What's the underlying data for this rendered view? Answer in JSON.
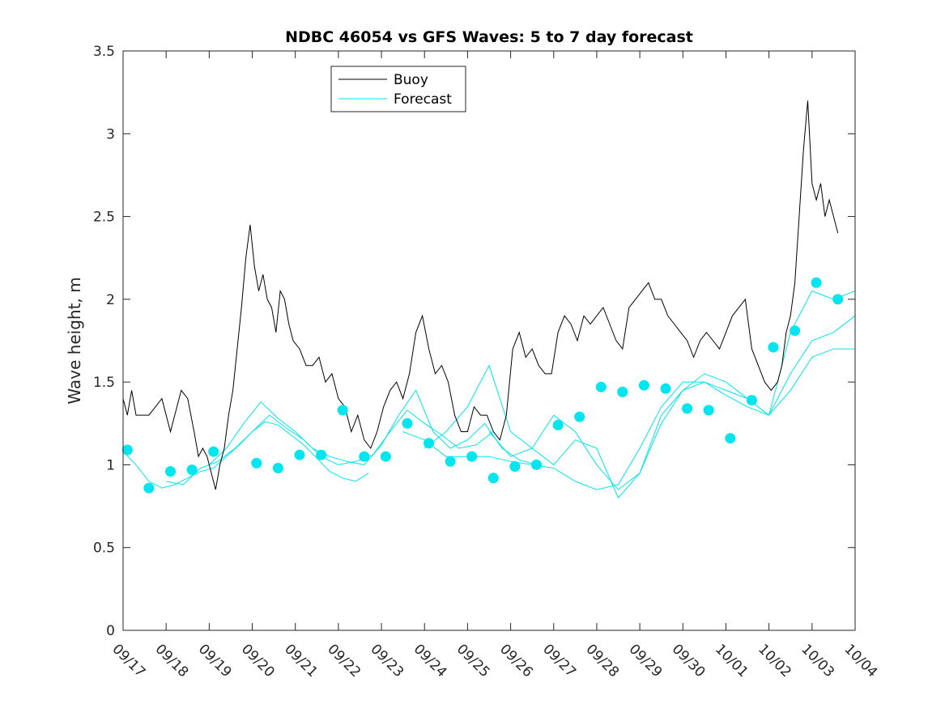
{
  "chart_data": {
    "type": "line",
    "title": "NDBC 46054 vs GFS Waves: 5 to 7 day forecast",
    "xlabel": "",
    "ylabel": "Wave height, m",
    "xlim": [
      0,
      17
    ],
    "ylim": [
      0,
      3.5
    ],
    "yticks": [
      0,
      0.5,
      1,
      1.5,
      2,
      2.5,
      3,
      3.5
    ],
    "ytick_labels": [
      "0",
      "0.5",
      "1",
      "1.5",
      "2",
      "2.5",
      "3",
      "3.5"
    ],
    "xtick_labels": [
      "09/17",
      "09/18",
      "09/19",
      "09/20",
      "09/21",
      "09/22",
      "09/23",
      "09/24",
      "09/25",
      "09/26",
      "09/27",
      "09/28",
      "09/29",
      "09/30",
      "10/01",
      "10/02",
      "10/03",
      "10/04"
    ],
    "legend": {
      "location": "top-center",
      "entries": [
        "Buoy",
        "Forecast"
      ]
    },
    "colors": {
      "buoy": "#000000",
      "forecast": "#00e5ee",
      "axis": "#262626"
    },
    "buoy": {
      "name": "Buoy",
      "x": [
        0,
        0.1,
        0.2,
        0.3,
        0.45,
        0.6,
        0.75,
        0.9,
        1.0,
        1.1,
        1.2,
        1.35,
        1.5,
        1.65,
        1.75,
        1.85,
        1.95,
        2.05,
        2.15,
        2.25,
        2.35,
        2.45,
        2.55,
        2.65,
        2.75,
        2.85,
        2.95,
        3.05,
        3.15,
        3.25,
        3.35,
        3.45,
        3.55,
        3.65,
        3.75,
        3.85,
        3.95,
        4.1,
        4.25,
        4.4,
        4.55,
        4.7,
        4.85,
        5.0,
        5.15,
        5.3,
        5.45,
        5.6,
        5.75,
        5.9,
        6.05,
        6.2,
        6.35,
        6.5,
        6.65,
        6.8,
        6.95,
        7.1,
        7.25,
        7.4,
        7.55,
        7.7,
        7.85,
        8.0,
        8.15,
        8.3,
        8.45,
        8.6,
        8.75,
        8.9,
        9.05,
        9.2,
        9.35,
        9.5,
        9.65,
        9.8,
        9.95,
        10.1,
        10.25,
        10.4,
        10.55,
        10.7,
        10.85,
        11.0,
        11.15,
        11.3,
        11.45,
        11.6,
        11.75,
        11.9,
        12.05,
        12.2,
        12.35,
        12.5,
        12.65,
        12.8,
        12.95,
        13.1,
        13.25,
        13.4,
        13.55,
        13.7,
        13.85,
        14.0,
        14.15,
        14.3,
        14.45,
        14.6,
        14.75,
        14.9,
        15.05,
        15.2,
        15.3,
        15.4,
        15.5,
        15.6,
        15.7,
        15.8,
        15.9,
        16.0,
        16.1,
        16.2,
        16.3,
        16.4,
        16.5,
        16.6
      ],
      "y": [
        1.4,
        1.3,
        1.45,
        1.3,
        1.3,
        1.3,
        1.35,
        1.4,
        1.3,
        1.2,
        1.3,
        1.45,
        1.4,
        1.2,
        1.05,
        1.1,
        1.05,
        0.95,
        0.85,
        1.0,
        1.1,
        1.3,
        1.45,
        1.7,
        1.95,
        2.25,
        2.45,
        2.2,
        2.05,
        2.15,
        2.0,
        1.95,
        1.8,
        2.05,
        2.0,
        1.85,
        1.75,
        1.7,
        1.6,
        1.6,
        1.65,
        1.5,
        1.55,
        1.4,
        1.35,
        1.2,
        1.3,
        1.15,
        1.1,
        1.2,
        1.35,
        1.45,
        1.5,
        1.4,
        1.55,
        1.8,
        1.9,
        1.7,
        1.55,
        1.6,
        1.5,
        1.3,
        1.2,
        1.2,
        1.35,
        1.3,
        1.3,
        1.2,
        1.15,
        1.3,
        1.7,
        1.8,
        1.65,
        1.7,
        1.6,
        1.55,
        1.55,
        1.8,
        1.9,
        1.85,
        1.75,
        1.9,
        1.85,
        1.9,
        1.95,
        1.85,
        1.75,
        1.7,
        1.95,
        2.0,
        2.05,
        2.1,
        2.0,
        2.0,
        1.9,
        1.85,
        1.8,
        1.75,
        1.65,
        1.75,
        1.8,
        1.75,
        1.7,
        1.8,
        1.9,
        1.95,
        2.0,
        1.7,
        1.6,
        1.5,
        1.45,
        1.5,
        1.6,
        1.8,
        1.9,
        2.1,
        2.5,
        2.9,
        3.2,
        2.7,
        2.6,
        2.7,
        2.5,
        2.6,
        2.5,
        2.4
      ]
    },
    "forecast": {
      "name": "Forecast",
      "series": [
        {
          "x": [
            0.0,
            0.3,
            0.6,
            0.9,
            1.2,
            1.5,
            1.8,
            2.1,
            2.4,
            2.7,
            3.0,
            3.3,
            3.6,
            3.9,
            4.2,
            4.5,
            4.8,
            5.1,
            5.4,
            5.7
          ],
          "y": [
            1.08,
            1.0,
            0.9,
            0.86,
            0.88,
            0.92,
            0.96,
            0.98,
            1.05,
            1.12,
            1.2,
            1.26,
            1.24,
            1.18,
            1.12,
            1.04,
            0.96,
            0.92,
            0.9,
            0.95
          ]
        },
        {
          "x": [
            1.0,
            1.4,
            1.8,
            2.2,
            2.6,
            3.0,
            3.4,
            3.8,
            4.2,
            4.6,
            5.0,
            5.4,
            5.8,
            6.2,
            6.6,
            7.0,
            7.4,
            7.8,
            8.2,
            8.6
          ],
          "y": [
            0.9,
            0.88,
            0.98,
            1.02,
            1.1,
            1.2,
            1.3,
            1.22,
            1.15,
            1.05,
            1.0,
            1.02,
            1.06,
            1.2,
            1.33,
            1.25,
            1.18,
            1.1,
            1.12,
            1.2
          ]
        },
        {
          "x": [
            2.0,
            2.4,
            2.8,
            3.2,
            3.6,
            4.0,
            4.4,
            4.8,
            5.2,
            5.6,
            6.0,
            6.4,
            6.8,
            7.2,
            7.6,
            8.0,
            8.4,
            8.8,
            9.2,
            9.6
          ],
          "y": [
            1.0,
            1.1,
            1.25,
            1.38,
            1.28,
            1.2,
            1.1,
            1.05,
            1.02,
            1.0,
            1.12,
            1.3,
            1.45,
            1.2,
            1.1,
            1.15,
            1.25,
            1.1,
            1.03,
            1.0
          ]
        },
        {
          "x": [
            6.5,
            7.0,
            7.5,
            8.0,
            8.5,
            9.0,
            9.5,
            10.0,
            10.5,
            11.0,
            11.5,
            12.0,
            12.5,
            13.0,
            13.5,
            14.0,
            14.5,
            15.0,
            15.5,
            16.0,
            16.5,
            17.0
          ],
          "y": [
            1.2,
            1.15,
            1.05,
            1.05,
            1.05,
            1.02,
            1.0,
            0.98,
            0.9,
            0.85,
            0.88,
            1.1,
            1.35,
            1.5,
            1.5,
            1.45,
            1.4,
            1.3,
            1.45,
            1.65,
            1.7,
            1.7
          ]
        },
        {
          "x": [
            7.0,
            7.5,
            8.0,
            8.5,
            9.0,
            9.5,
            10.0,
            10.5,
            11.0,
            11.5,
            12.0,
            12.5,
            13.0,
            13.5,
            14.0,
            14.5,
            15.0,
            15.5,
            16.0,
            16.5,
            17.0
          ],
          "y": [
            1.1,
            1.2,
            1.35,
            1.6,
            1.2,
            1.1,
            1.3,
            1.2,
            1.0,
            0.85,
            0.95,
            1.25,
            1.45,
            1.5,
            1.42,
            1.35,
            1.3,
            1.55,
            1.75,
            1.8,
            1.9
          ]
        },
        {
          "x": [
            8.5,
            9.0,
            9.5,
            10.0,
            10.5,
            11.0,
            11.5,
            12.0,
            12.5,
            13.0,
            13.5,
            14.0,
            14.5,
            15.0,
            15.5,
            16.0,
            16.5,
            17.0
          ],
          "y": [
            1.2,
            1.05,
            1.1,
            1.0,
            1.15,
            1.1,
            0.8,
            0.95,
            1.3,
            1.45,
            1.55,
            1.5,
            1.4,
            1.3,
            1.8,
            2.05,
            2.0,
            2.05
          ]
        }
      ],
      "markers": {
        "x": [
          0.1,
          0.6,
          1.1,
          1.6,
          2.1,
          3.1,
          3.6,
          4.1,
          4.6,
          5.1,
          5.6,
          6.1,
          6.6,
          7.1,
          7.6,
          8.1,
          8.6,
          9.1,
          9.6,
          10.1,
          10.6,
          11.1,
          11.6,
          12.1,
          12.6,
          13.1,
          13.6,
          14.1,
          14.6,
          15.1,
          15.6,
          16.1,
          16.6
        ],
        "y": [
          1.09,
          0.86,
          0.96,
          0.97,
          1.08,
          1.01,
          0.98,
          1.06,
          1.06,
          1.33,
          1.05,
          1.05,
          1.25,
          1.13,
          1.02,
          1.05,
          0.92,
          0.99,
          1.0,
          1.24,
          1.29,
          1.47,
          1.44,
          1.48,
          1.46,
          1.34,
          1.33,
          1.16,
          1.39,
          1.71,
          1.81,
          2.1,
          2.0
        ]
      }
    }
  }
}
